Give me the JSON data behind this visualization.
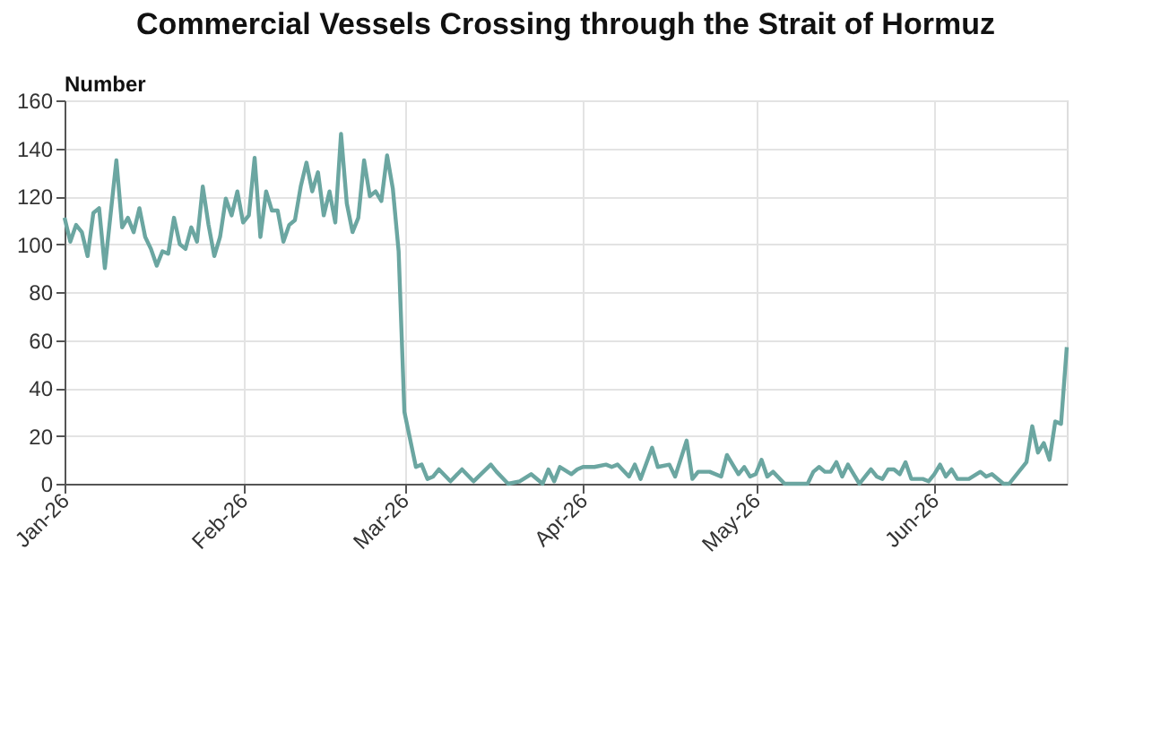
{
  "chart_data": {
    "type": "line",
    "title": "Commercial Vessels Crossing through the Strait of Hormuz",
    "ylabel": "Number",
    "xlim": [
      "2026-01-01",
      "2026-06-24"
    ],
    "xticks": [
      {
        "value": "2026-01-01",
        "label": "Jan-26"
      },
      {
        "value": "2026-02-01",
        "label": "Feb-26"
      },
      {
        "value": "2026-03-01",
        "label": "Mar-26"
      },
      {
        "value": "2026-04-01",
        "label": "Apr-26"
      },
      {
        "value": "2026-05-01",
        "label": "May-26"
      },
      {
        "value": "2026-06-01",
        "label": "Jun-26"
      }
    ],
    "ylim": [
      0,
      160
    ],
    "yticks": [
      0,
      20,
      40,
      60,
      80,
      100,
      120,
      140,
      160
    ],
    "grid": true,
    "marker": "none",
    "line_style": "solid",
    "series": [
      {
        "color": "#6ba6a1",
        "x": [
          "2026-01-01",
          "2026-01-02",
          "2026-01-03",
          "2026-01-04",
          "2026-01-05",
          "2026-01-06",
          "2026-01-07",
          "2026-01-08",
          "2026-01-10",
          "2026-01-11",
          "2026-01-12",
          "2026-01-13",
          "2026-01-14",
          "2026-01-15",
          "2026-01-16",
          "2026-01-17",
          "2026-01-18",
          "2026-01-19",
          "2026-01-20",
          "2026-01-21",
          "2026-01-22",
          "2026-01-23",
          "2026-01-24",
          "2026-01-25",
          "2026-01-26",
          "2026-01-27",
          "2026-01-28",
          "2026-01-29",
          "2026-01-30",
          "2026-01-31",
          "2026-02-01",
          "2026-02-02",
          "2026-02-03",
          "2026-02-04",
          "2026-02-05",
          "2026-02-06",
          "2026-02-07",
          "2026-02-08",
          "2026-02-09",
          "2026-02-10",
          "2026-02-11",
          "2026-02-12",
          "2026-02-13",
          "2026-02-14",
          "2026-02-15",
          "2026-02-16",
          "2026-02-17",
          "2026-02-18",
          "2026-02-19",
          "2026-02-20",
          "2026-02-21",
          "2026-02-22",
          "2026-02-23",
          "2026-02-24",
          "2026-02-25",
          "2026-02-26",
          "2026-02-27",
          "2026-02-28",
          "2026-03-01",
          "2026-03-03",
          "2026-03-04",
          "2026-03-05",
          "2026-03-06",
          "2026-03-07",
          "2026-03-09",
          "2026-03-11",
          "2026-03-13",
          "2026-03-16",
          "2026-03-17",
          "2026-03-19",
          "2026-03-21",
          "2026-03-23",
          "2026-03-25",
          "2026-03-26",
          "2026-03-27",
          "2026-03-28",
          "2026-03-30",
          "2026-03-31",
          "2026-04-01",
          "2026-04-03",
          "2026-04-05",
          "2026-04-06",
          "2026-04-07",
          "2026-04-09",
          "2026-04-10",
          "2026-04-11",
          "2026-04-13",
          "2026-04-14",
          "2026-04-16",
          "2026-04-17",
          "2026-04-19",
          "2026-04-20",
          "2026-04-21",
          "2026-04-23",
          "2026-04-25",
          "2026-04-26",
          "2026-04-27",
          "2026-04-28",
          "2026-04-29",
          "2026-04-30",
          "2026-05-01",
          "2026-05-02",
          "2026-05-03",
          "2026-05-04",
          "2026-05-06",
          "2026-05-10",
          "2026-05-11",
          "2026-05-12",
          "2026-05-13",
          "2026-05-14",
          "2026-05-15",
          "2026-05-16",
          "2026-05-17",
          "2026-05-18",
          "2026-05-19",
          "2026-05-20",
          "2026-05-21",
          "2026-05-22",
          "2026-05-23",
          "2026-05-24",
          "2026-05-25",
          "2026-05-26",
          "2026-05-27",
          "2026-05-28",
          "2026-05-30",
          "2026-05-31",
          "2026-06-01",
          "2026-06-02",
          "2026-06-03",
          "2026-06-04",
          "2026-06-05",
          "2026-06-07",
          "2026-06-09",
          "2026-06-10",
          "2026-06-11",
          "2026-06-13",
          "2026-06-14",
          "2026-06-17",
          "2026-06-18",
          "2026-06-19",
          "2026-06-20",
          "2026-06-21",
          "2026-06-22",
          "2026-06-23",
          "2026-06-24"
        ],
        "values": [
          111,
          101,
          108,
          105,
          95,
          113,
          115,
          90,
          135,
          107,
          111,
          105,
          115,
          103,
          98,
          91,
          97,
          96,
          111,
          100,
          98,
          107,
          101,
          124,
          108,
          95,
          103,
          119,
          112,
          122,
          109,
          112,
          136,
          103,
          122,
          114,
          114,
          101,
          108,
          110,
          124,
          134,
          122,
          130,
          112,
          122,
          109,
          146,
          117,
          105,
          111,
          135,
          120,
          122,
          118,
          137,
          123,
          97,
          30,
          7,
          8,
          2,
          3,
          6,
          1,
          6,
          1,
          8,
          5,
          0,
          1,
          4,
          0,
          6,
          1,
          7,
          4,
          6,
          7,
          7,
          8,
          7,
          8,
          3,
          8,
          2,
          15,
          7,
          8,
          3,
          18,
          2,
          5,
          5,
          3,
          12,
          8,
          4,
          7,
          3,
          4,
          10,
          3,
          5,
          0,
          0,
          5,
          7,
          5,
          5,
          9,
          3,
          8,
          4,
          0,
          3,
          6,
          3,
          2,
          6,
          6,
          4,
          9,
          2,
          2,
          1,
          4,
          8,
          3,
          6,
          2,
          2,
          5,
          3,
          4,
          0,
          0,
          9,
          24,
          13,
          17,
          10,
          26,
          25,
          57
        ]
      }
    ]
  }
}
